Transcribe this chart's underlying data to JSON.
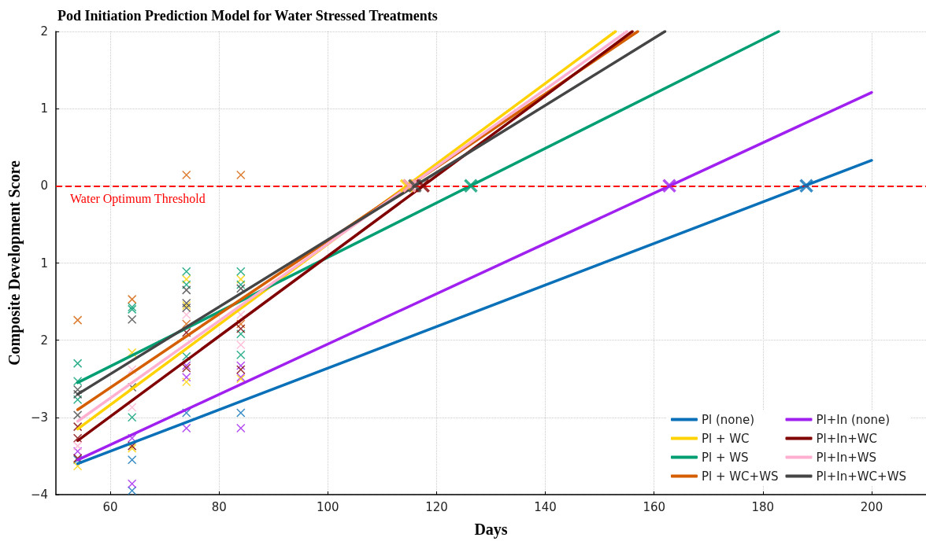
{
  "chart_data": {
    "type": "line",
    "title": "Pod Initiation Prediction Model for Water Stressed Treatments",
    "xlabel": "Days",
    "ylabel": "Composite Development Score",
    "xlim": [
      50,
      210
    ],
    "xticks": [
      60,
      80,
      100,
      120,
      140,
      160,
      180,
      200
    ],
    "ylim": [
      -4,
      2
    ],
    "yticks": [
      {
        "value": -4,
        "label": "−4"
      },
      {
        "value": -3,
        "label": "−3"
      },
      {
        "value": -2,
        "label": "2"
      },
      {
        "value": -1,
        "label": "1"
      },
      0,
      1,
      2
    ],
    "grid": true,
    "legend": "bottom right",
    "ref_lines": [
      {
        "axis": "y",
        "value": 0,
        "label": "Water Optimum Threshold",
        "color": "#ff0000",
        "line_style": "dashed"
      }
    ],
    "series": [
      {
        "type": "scatter",
        "marker": "cross",
        "color": "#0a70b8",
        "x": [
          54,
          64,
          64,
          74,
          84
        ],
        "values": [
          -3.55,
          -3.55,
          -3.95,
          -2.94,
          -2.94
        ]
      },
      {
        "type": "scatter",
        "marker": "cross",
        "color": "#a020f0",
        "x": [
          54,
          64,
          64,
          74,
          74,
          74,
          84,
          84,
          84
        ],
        "values": [
          -3.44,
          -3.27,
          -3.86,
          -2.33,
          -2.48,
          -3.14,
          -2.33,
          -2.48,
          -3.14
        ]
      },
      {
        "type": "scatter",
        "marker": "cross",
        "color": "#ffd200",
        "x": [
          54,
          64,
          64,
          74,
          74,
          74,
          84,
          84
        ],
        "values": [
          -3.63,
          -2.16,
          -3.4,
          -1.21,
          -1.55,
          -2.54,
          -1.21,
          -2.5
        ]
      },
      {
        "type": "scatter",
        "marker": "cross",
        "color": "#009e73",
        "x": [
          54,
          54,
          54,
          64,
          64,
          64,
          74,
          74,
          74,
          84,
          84,
          84,
          84
        ],
        "values": [
          -2.3,
          -2.53,
          -2.77,
          -1.57,
          -1.6,
          -3.0,
          -1.11,
          -1.28,
          -2.21,
          -1.11,
          -1.28,
          -1.92,
          -2.19
        ]
      },
      {
        "type": "scatter",
        "marker": "cross",
        "color": "#d55e00",
        "x": [
          54,
          64,
          74,
          74,
          84,
          84
        ],
        "values": [
          -1.74,
          -1.47,
          0.14,
          -1.79,
          0.14,
          -1.79
        ]
      },
      {
        "type": "scatter",
        "marker": "cross",
        "color": "#800000",
        "x": [
          54,
          54,
          54,
          64,
          74,
          74,
          84,
          84
        ],
        "values": [
          -3.12,
          -3.27,
          -3.53,
          -3.37,
          -1.9,
          -2.36,
          -1.85,
          -2.38
        ]
      },
      {
        "type": "scatter",
        "marker": "cross",
        "color": "#ffb0d0",
        "x": [
          54,
          64,
          64,
          74,
          84,
          84
        ],
        "values": [
          -3.37,
          -2.38,
          -2.87,
          -1.67,
          -1.67,
          -2.06
        ]
      },
      {
        "type": "scatter",
        "marker": "cross",
        "color": "#454545",
        "x": [
          54,
          54,
          54,
          64,
          64,
          74,
          74,
          74,
          84
        ],
        "values": [
          -2.64,
          -2.7,
          -2.97,
          -1.73,
          -2.61,
          -1.35,
          -1.52,
          -1.58,
          -1.33
        ]
      },
      {
        "name": "Pl (none)",
        "color": "#0a70b8",
        "x": [
          54,
          200
        ],
        "values": [
          -3.6,
          0.33
        ]
      },
      {
        "name": "Pl + WC",
        "color": "#ffd200",
        "x": [
          54,
          152.9
        ],
        "values": [
          -3.15,
          2
        ]
      },
      {
        "name": "Pl + WS",
        "color": "#009e73",
        "x": [
          54,
          182.9
        ],
        "values": [
          -2.55,
          2
        ]
      },
      {
        "name": "Pl + WC+WS",
        "color": "#d55e00",
        "x": [
          54,
          157
        ],
        "values": [
          -2.9,
          2
        ]
      },
      {
        "name": "Pl+In (none)",
        "color": "#a020f0",
        "x": [
          54,
          200
        ],
        "values": [
          -3.55,
          1.21
        ]
      },
      {
        "name": "Pl+In+WC",
        "color": "#800000",
        "x": [
          54,
          156
        ],
        "values": [
          -3.3,
          2
        ]
      },
      {
        "name": "Pl+In+WS",
        "color": "#ffb0d0",
        "x": [
          54,
          155
        ],
        "values": [
          -3.05,
          2
        ]
      },
      {
        "name": "Pl+In+WC+WS",
        "color": "#454545",
        "x": [
          54,
          162
        ],
        "values": [
          -2.7,
          2
        ]
      },
      {
        "type": "scatter",
        "marker": "cross",
        "color": "#0a70b8",
        "x": [
          188
        ],
        "values": [
          0
        ]
      },
      {
        "type": "scatter",
        "marker": "cross",
        "color": "#a020f0",
        "x": [
          162.8
        ],
        "values": [
          0
        ]
      },
      {
        "type": "scatter",
        "marker": "cross",
        "color": "#009e73",
        "x": [
          126.3
        ],
        "values": [
          0
        ]
      },
      {
        "type": "scatter",
        "marker": "cross",
        "color": "#ffd200",
        "x": [
          114.5
        ],
        "values": [
          0
        ]
      },
      {
        "type": "scatter",
        "marker": "cross",
        "color": "#d55e00",
        "x": [
          115
        ],
        "values": [
          0
        ]
      },
      {
        "type": "scatter",
        "marker": "cross",
        "color": "#800000",
        "x": [
          117.5
        ],
        "values": [
          0
        ]
      },
      {
        "type": "scatter",
        "marker": "cross",
        "color": "#ffb0d0",
        "x": [
          115
        ],
        "values": [
          0
        ]
      },
      {
        "type": "scatter",
        "marker": "cross",
        "color": "#454545",
        "x": [
          116
        ],
        "values": [
          0
        ]
      }
    ]
  }
}
